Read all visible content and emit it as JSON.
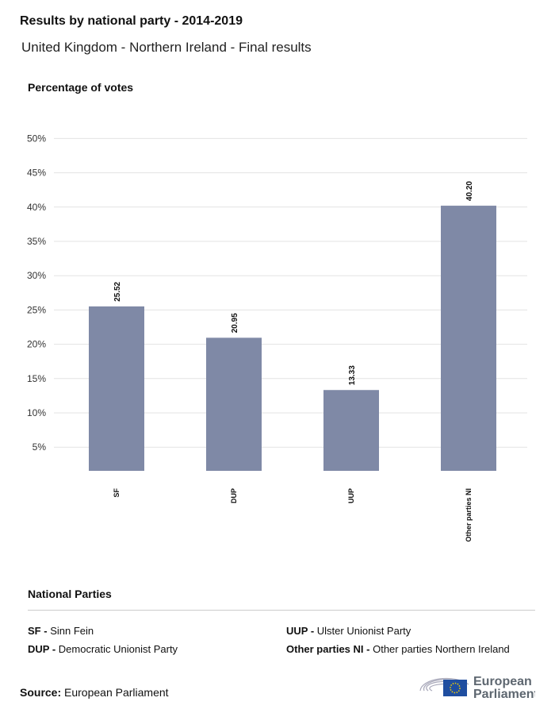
{
  "title": "Results by national party - 2014-2019",
  "subtitle": "United Kingdom - Northern Ireland - Final results",
  "chart_data": {
    "type": "bar",
    "ylabel": "Percentage of votes",
    "categories": [
      "SF",
      "DUP",
      "UUP",
      "Other parties NI"
    ],
    "values": [
      25.52,
      20.95,
      13.33,
      40.2
    ],
    "value_labels": [
      "25.52",
      "20.95",
      "13.33",
      "40.20"
    ],
    "yticks": [
      5,
      10,
      15,
      20,
      25,
      30,
      35,
      40,
      45,
      50
    ],
    "ytick_labels": [
      "5%",
      "10%",
      "15%",
      "20%",
      "25%",
      "30%",
      "35%",
      "40%",
      "45%",
      "50%"
    ],
    "ylim": [
      0,
      50
    ],
    "grid": true,
    "bar_color": "#7f89a6"
  },
  "legend": {
    "title": "National Parties",
    "items": [
      {
        "abbr": "SF -",
        "name": "Sinn Fein"
      },
      {
        "abbr": "DUP -",
        "name": "Democratic Unionist Party"
      },
      {
        "abbr": "UUP -",
        "name": "Ulster Unionist Party"
      },
      {
        "abbr": "Other parties NI -",
        "name": "Other parties Northern Ireland"
      }
    ]
  },
  "source": {
    "label": "Source:",
    "value": "European Parliament"
  },
  "logo": {
    "line1": "European",
    "line2": "Parliament"
  }
}
